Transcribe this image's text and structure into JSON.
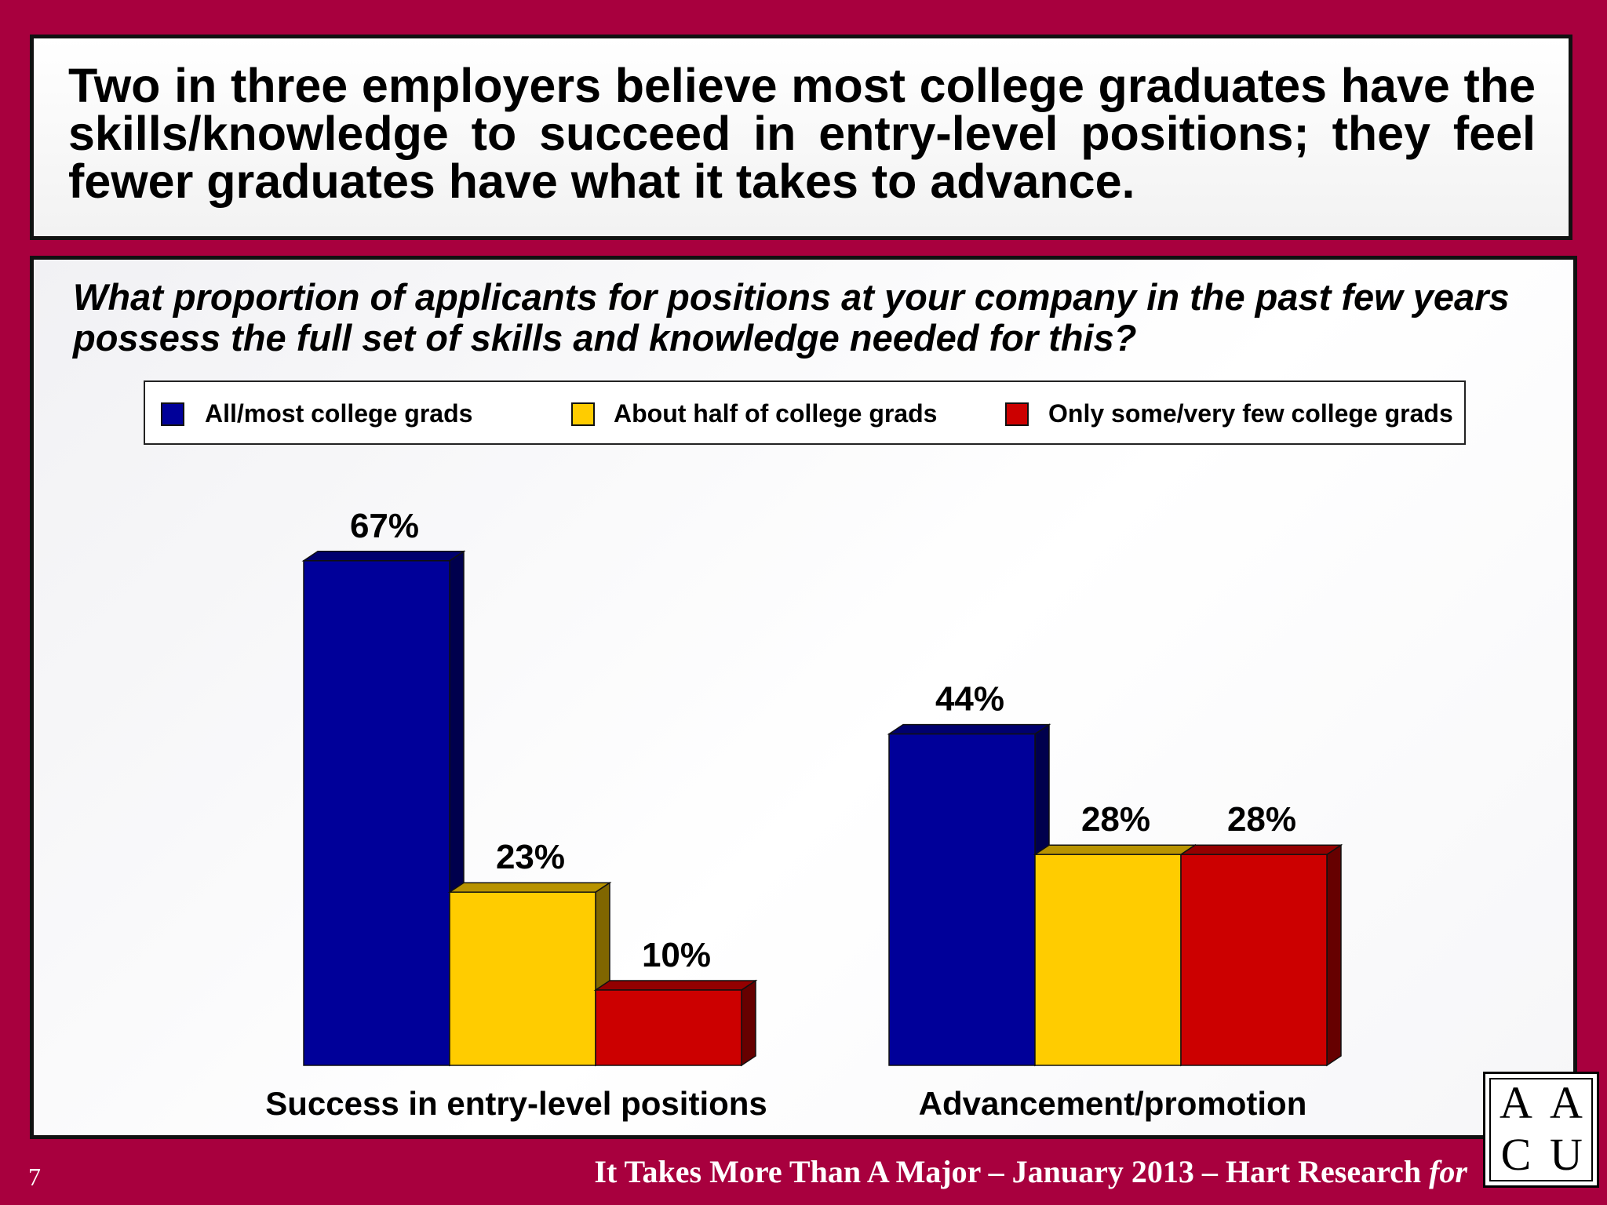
{
  "headline": "Two in three employers believe most college graduates have the skills/knowledge to succeed in entry-level positions; they feel fewer graduates have what it takes to advance.",
  "colors": {
    "background": "#a8003e",
    "series_blue": "#000099",
    "series_yellow": "#ffcc00",
    "series_red": "#cc0000"
  },
  "chart_data": {
    "type": "bar",
    "style": "3d-grouped",
    "title": "What proportion of applicants for positions at your company in the past few years possess the full set of skills and knowledge needed for this?",
    "categories": [
      "Success in entry-level positions",
      "Advancement/promotion"
    ],
    "series": [
      {
        "name": "All/most college grads",
        "color": "#000099",
        "values": [
          67,
          44
        ]
      },
      {
        "name": "About half of college grads",
        "color": "#ffcc00",
        "values": [
          23,
          28
        ]
      },
      {
        "name": "Only some/very few college grads",
        "color": "#cc0000",
        "values": [
          10,
          28
        ]
      }
    ],
    "value_suffix": "%",
    "legend_position": "top",
    "grid": false,
    "ylim": [
      0,
      70
    ]
  },
  "footer": {
    "page_number": "7",
    "text": "It Takes More Than A Major – January 2013 – Hart Research",
    "for_word": "for"
  },
  "logo": {
    "letters": [
      "A",
      "A",
      "C",
      "U"
    ],
    "ampersand": "&"
  }
}
